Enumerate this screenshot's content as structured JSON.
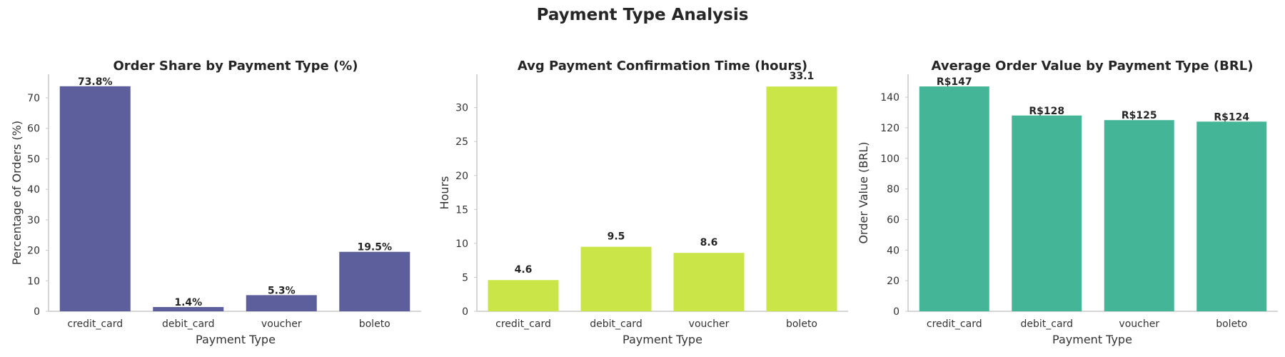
{
  "figure": {
    "title": "Payment Type Analysis"
  },
  "chart_data": [
    {
      "type": "bar",
      "title": "Order Share by Payment Type (%)",
      "xlabel": "Payment Type",
      "ylabel": "Percentage of Orders (%)",
      "categories": [
        "credit_card",
        "debit_card",
        "voucher",
        "boleto"
      ],
      "values": [
        73.8,
        1.4,
        5.3,
        19.5
      ],
      "data_labels": [
        "73.8%",
        "1.4%",
        "5.3%",
        "19.5%"
      ],
      "ylim": [
        0,
        77.5
      ],
      "yticks": [
        0,
        10,
        20,
        30,
        40,
        50,
        60,
        70
      ],
      "color": "#5c5f9b",
      "grid": false
    },
    {
      "type": "bar",
      "title": "Avg Payment Confirmation Time (hours)",
      "xlabel": "Payment Type",
      "ylabel": "Hours",
      "categories": [
        "credit_card",
        "debit_card",
        "voucher",
        "boleto"
      ],
      "values": [
        4.6,
        9.5,
        8.6,
        33.1
      ],
      "data_labels": [
        "4.6",
        "9.5",
        "8.6",
        "33.1"
      ],
      "ylim": [
        0,
        34.8
      ],
      "yticks": [
        0,
        5,
        10,
        15,
        20,
        25,
        30
      ],
      "color": "#c9e547",
      "grid": false
    },
    {
      "type": "bar",
      "title": "Average Order Value by Payment Type (BRL)",
      "xlabel": "Payment Type",
      "ylabel": "Order Value (BRL)",
      "categories": [
        "credit_card",
        "debit_card",
        "voucher",
        "boleto"
      ],
      "values": [
        147,
        128,
        125,
        124
      ],
      "data_labels": [
        "R$147",
        "R$128",
        "R$125",
        "R$124"
      ],
      "ylim": [
        0,
        154.5
      ],
      "yticks": [
        0,
        20,
        40,
        60,
        80,
        100,
        120,
        140
      ],
      "color": "#44b596",
      "grid": false
    }
  ]
}
